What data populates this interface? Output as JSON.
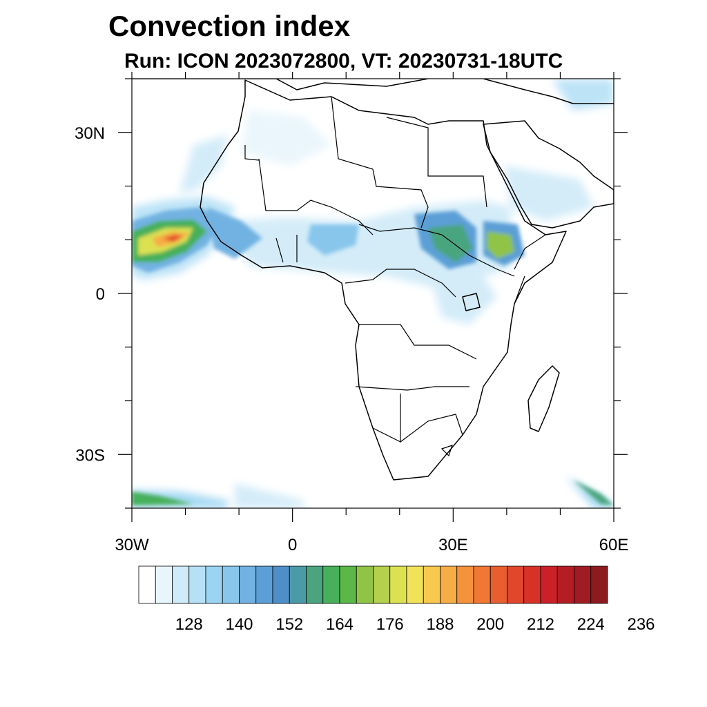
{
  "title": "Convection index",
  "subtitle": "Run: ICON 2023072800,  VT: 20230731-18UTC",
  "axes": {
    "lat_labels": [
      "30N",
      "0",
      "30S"
    ],
    "lon_labels": [
      "30W",
      "0",
      "30E",
      "60E"
    ]
  },
  "colorbar": {
    "labels": [
      "128",
      "140",
      "152",
      "164",
      "176",
      "188",
      "200",
      "212",
      "224",
      "236"
    ],
    "colors": [
      "#ffffff",
      "#e8f5fc",
      "#cfeaf8",
      "#b5e0f6",
      "#9ad4f2",
      "#88c6ec",
      "#72b2e2",
      "#5b9fd6",
      "#4f8fc7",
      "#4a9aa8",
      "#4aa57e",
      "#46b05a",
      "#5bb848",
      "#8fc447",
      "#b4d04c",
      "#dbe151",
      "#f2e25a",
      "#f8c84f",
      "#f7ad45",
      "#f5923c",
      "#f07833",
      "#e85e2e",
      "#e0472b",
      "#d83228",
      "#c92127",
      "#b51d25",
      "#a11b22",
      "#8d1a1f"
    ]
  },
  "chart_data": {
    "type": "heatmap",
    "title": "Convection index",
    "subtitle": "Run: ICON 2023072800,  VT: 20230731-18UTC",
    "lon_range": [
      -30,
      60
    ],
    "lat_range": [
      -40,
      40
    ],
    "x_ticks": [
      "30W",
      "0",
      "30E",
      "60E"
    ],
    "y_ticks": [
      "30N",
      "0",
      "30S"
    ],
    "colorbar_levels": [
      128,
      140,
      152,
      164,
      176,
      188,
      200,
      212,
      224,
      236
    ]
  }
}
